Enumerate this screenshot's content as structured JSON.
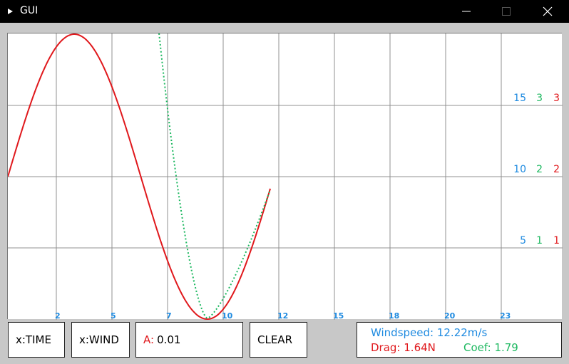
{
  "window": {
    "title": "GUI",
    "min_icon": "minimize-icon",
    "max_icon": "maximize-icon",
    "close_icon": "close-icon"
  },
  "plot": {
    "x_ticks": [
      "2",
      "5",
      "7",
      "10",
      "12",
      "15",
      "18",
      "20",
      "23"
    ],
    "y_labels": [
      {
        "blue": "15",
        "green": "3",
        "red": "3"
      },
      {
        "blue": "10",
        "green": "2",
        "red": "2"
      },
      {
        "blue": "5",
        "green": "1",
        "red": "1"
      }
    ],
    "colors": {
      "blue": "#1e8ae0",
      "green": "#1db860",
      "red": "#e0181c",
      "grid": "#909090"
    }
  },
  "controls": {
    "time_label": "x:TIME",
    "wind_label": "x:WIND",
    "a_label": "A:",
    "a_value": "0.01",
    "clear_label": "CLEAR"
  },
  "info": {
    "windspeed": "Windspeed: 12.22m/s",
    "drag": "Drag: 1.64N",
    "coef": "Coef: 1.79"
  }
}
